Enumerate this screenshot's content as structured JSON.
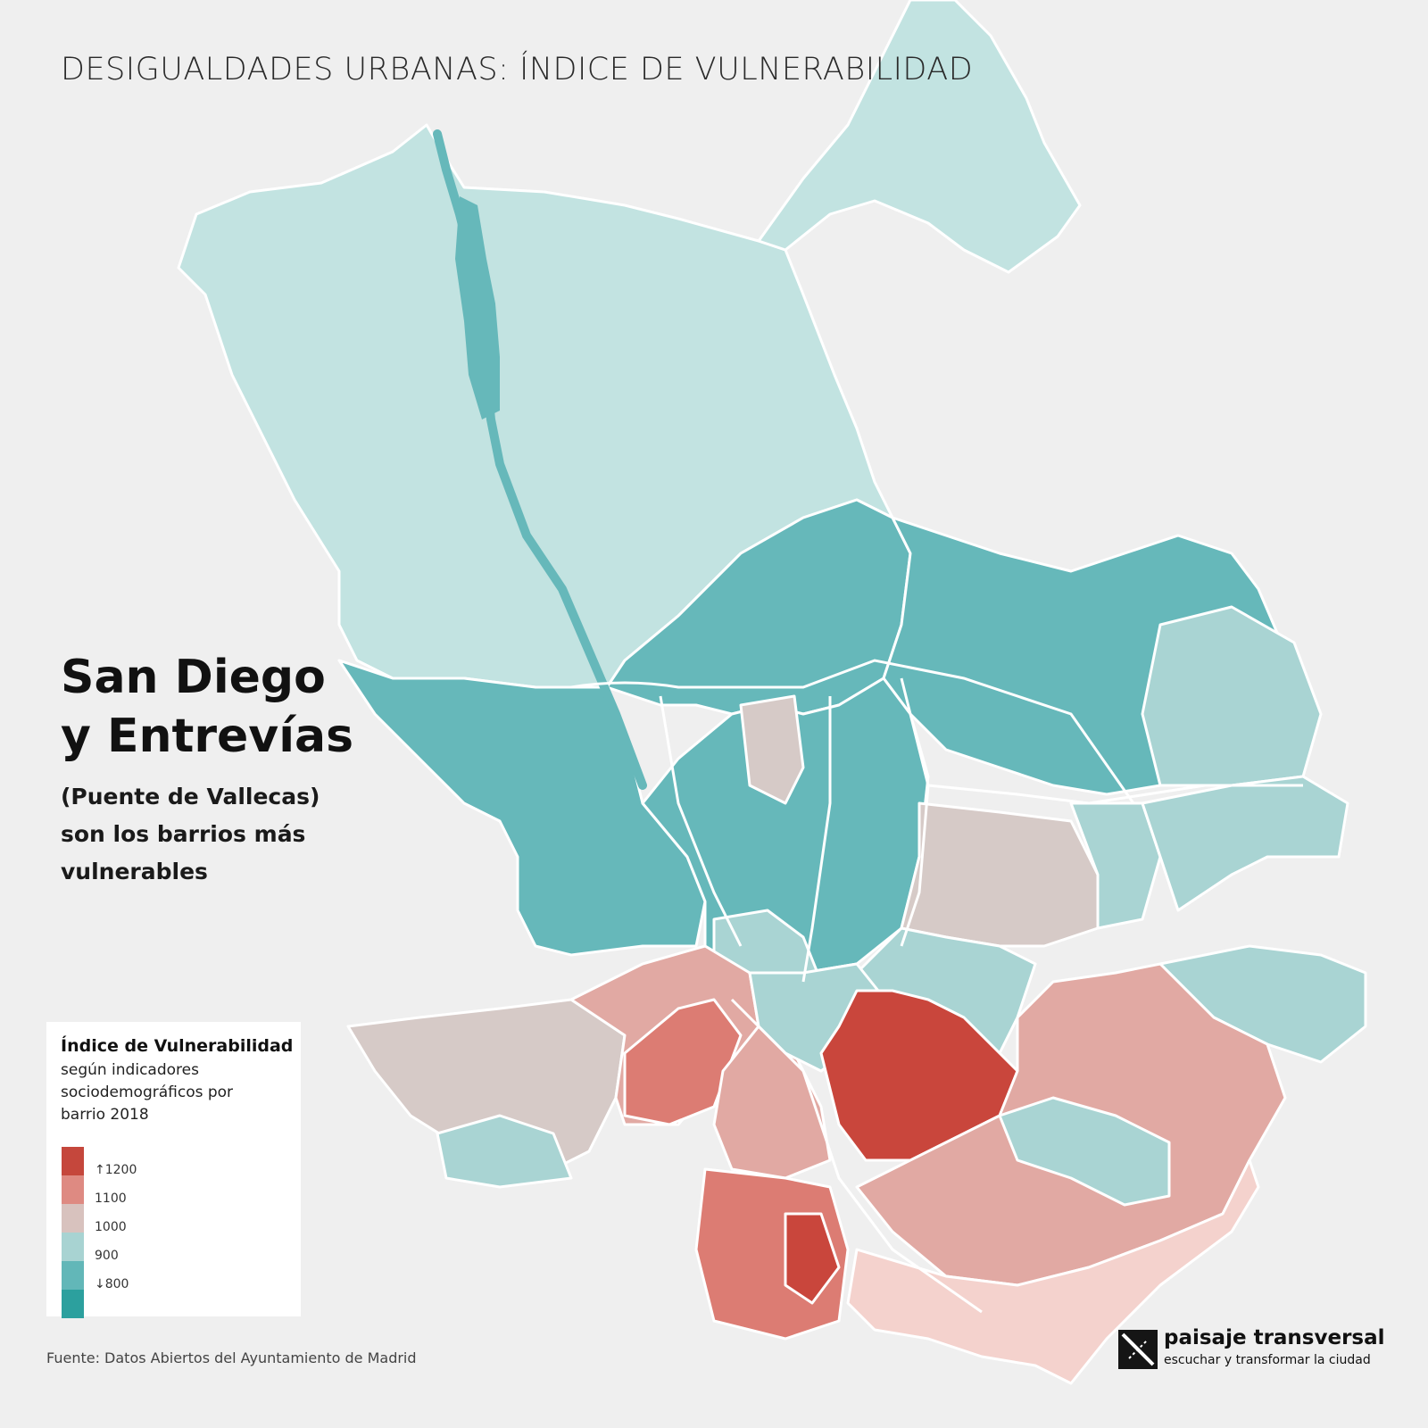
{
  "header": {
    "title": "DESIGUALDADES URBANAS: ÍNDICE DE VULNERABILIDAD"
  },
  "headline": {
    "line1": "San Diego",
    "line2": "y Entrevías",
    "sub1": "(Puente de Vallecas)",
    "sub2": "son los barrios más",
    "sub3": "vulnerables"
  },
  "legend": {
    "title": "Índice de Vulnerabilidad",
    "desc1": "según indicadores",
    "desc2": "sociodemográficos por",
    "desc3": "barrio 2018",
    "items": [
      {
        "label": "↑1200",
        "color": "#c5473c"
      },
      {
        "label": "1100",
        "color": "#de8a82"
      },
      {
        "label": "1000",
        "color": "#d8c2be"
      },
      {
        "label": "900",
        "color": "#a8d3d2"
      },
      {
        "label": "↓800",
        "color": "#62b7b8"
      },
      {
        "label": "",
        "color": "#2ca09e"
      }
    ]
  },
  "source": "Fuente: Datos Abiertos del Ayuntamiento de Madrid",
  "logo": {
    "name": "paisaje transversal",
    "tagline": "escuchar y transformar la ciudad",
    "icon": "paisaje-transversal-logo-icon"
  },
  "map_colors": {
    "background": "#efefef",
    "borders": "#ffffff",
    "very_low": "#c2e3e1",
    "low": "#66b8ba",
    "mid_low": "#a9d4d3",
    "mid": "#d6cac7",
    "mid_high": "#e1a9a3",
    "high": "#dc7c73",
    "very_high": "#c9463c",
    "pale_pink": "#f4d2cd"
  }
}
